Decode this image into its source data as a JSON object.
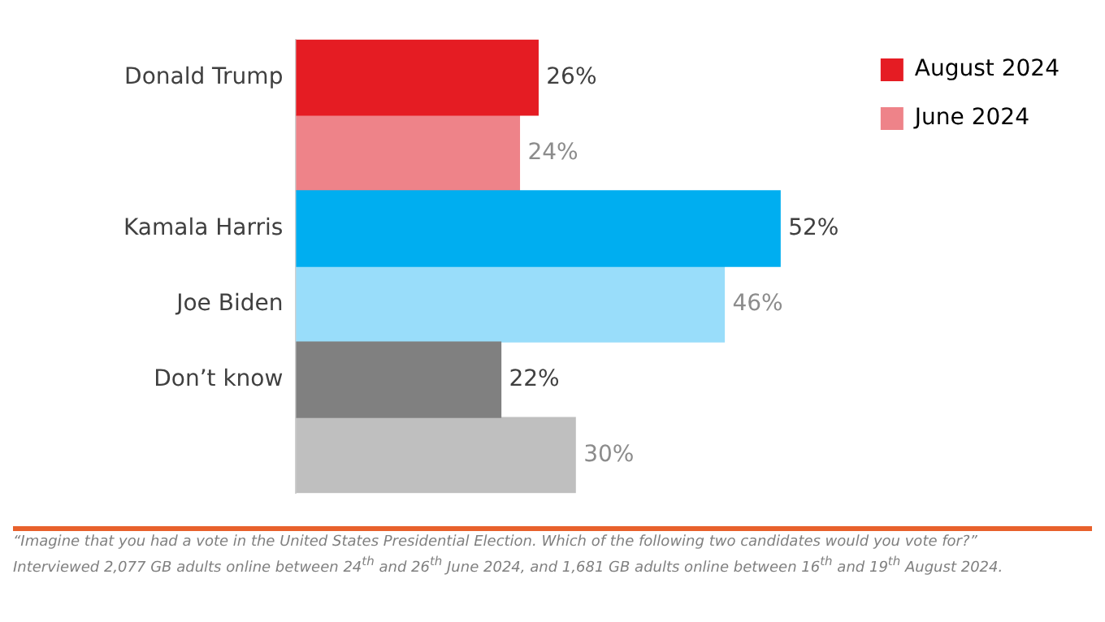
{
  "chart_data": {
    "type": "bar",
    "orientation": "horizontal",
    "stacked": true,
    "categories": [
      "Donald Trump",
      null,
      "Kamala Harris",
      "Joe Biden",
      "Don’t know",
      null
    ],
    "series": [
      {
        "name": "August 2024",
        "color": "#e51c23",
        "colors": [
          "#e51c23",
          "#e51c23",
          "#00aef0",
          "#00aef0",
          "#808080",
          "#808080"
        ],
        "values": [
          26,
          null,
          52,
          null,
          22,
          null
        ],
        "value_labels": [
          "26%",
          null,
          "52%",
          null,
          "22%",
          null
        ]
      },
      {
        "name": "June 2024",
        "color": "#ee8389",
        "colors": [
          "#ee8389",
          "#ee8389",
          "#99ddfa",
          "#99ddfa",
          "#bfbfbf",
          "#bfbfbf"
        ],
        "values": [
          null,
          24,
          null,
          46,
          null,
          30
        ],
        "value_labels": [
          null,
          "24%",
          null,
          "46%",
          null,
          "30%"
        ]
      }
    ],
    "tick_labels": "y",
    "legend": "top right",
    "annotations": [
      "“Imagine that you had a vote in the United States Presidential Election. Which of the following two candidates would you vote for?”",
      "Interviewed 2,077 GB adults online between 24$^{th}$ and 26$^{th}$ June 2024, and 1,681 GB adults online between 16$^{th}$ and 19$^{th}$ August 2024."
    ]
  }
}
